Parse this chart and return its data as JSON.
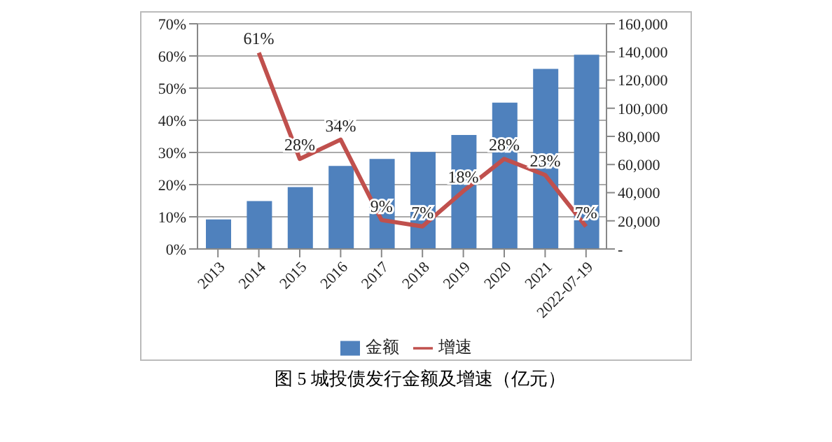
{
  "chart_data": {
    "type": "bar",
    "title": "图 5 城投债发行金额及增速（亿元）",
    "categories": [
      "2013",
      "2014",
      "2015",
      "2016",
      "2017",
      "2018",
      "2019",
      "2020",
      "2021",
      "2022-07-19"
    ],
    "series": [
      {
        "name": "金额",
        "axis": "y2",
        "color": "#4f81bd",
        "values": [
          21000,
          34000,
          44000,
          59000,
          64000,
          69000,
          81000,
          104000,
          128000,
          138000
        ]
      },
      {
        "name": "增速",
        "type": "line",
        "color": "#c0504d",
        "values": [
          null,
          61,
          28,
          34,
          9,
          7,
          18,
          28,
          23,
          7
        ],
        "value_labels": [
          null,
          "61%",
          "28%",
          "34%",
          "9%",
          "7%",
          "18%",
          "28%",
          "23%",
          "7%"
        ]
      }
    ],
    "ylim": [
      0,
      70
    ],
    "yticks": [
      {
        "value": 0,
        "label": "0%"
      },
      {
        "value": 10,
        "label": "10%"
      },
      {
        "value": 20,
        "label": "20%"
      },
      {
        "value": 30,
        "label": "30%"
      },
      {
        "value": 40,
        "label": "40%"
      },
      {
        "value": 50,
        "label": "50%"
      },
      {
        "value": 60,
        "label": "60%"
      },
      {
        "value": 70,
        "label": "70%"
      }
    ],
    "y2lim": [
      0,
      160000
    ],
    "y2ticks": [
      {
        "value": 0,
        "label": "-"
      },
      {
        "value": 20000,
        "label": "20,000"
      },
      {
        "value": 40000,
        "label": "40,000"
      },
      {
        "value": 60000,
        "label": "60,000"
      },
      {
        "value": 80000,
        "label": "80,000"
      },
      {
        "value": 100000,
        "label": "100,000"
      },
      {
        "value": 120000,
        "label": "120,000"
      },
      {
        "value": 140000,
        "label": "140,000"
      },
      {
        "value": 160000,
        "label": "160,000"
      }
    ],
    "grid": "y",
    "legend": "bottom",
    "marker": "none"
  }
}
